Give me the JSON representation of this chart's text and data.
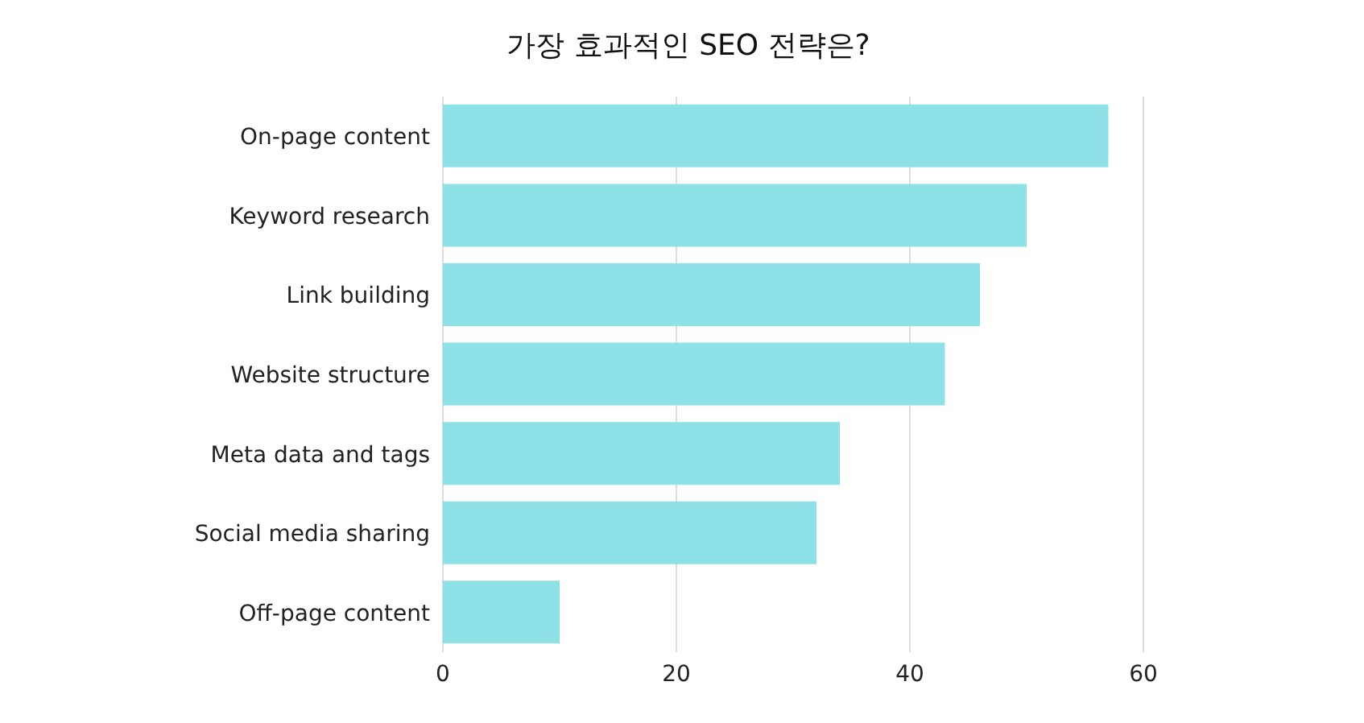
{
  "chart_data": {
    "type": "bar",
    "orientation": "horizontal",
    "title": "가장 효과적인 SEO 전략은?",
    "categories": [
      "On-page content",
      "Keyword research",
      "Link building",
      "Website structure",
      "Meta data and tags",
      "Social media sharing",
      "Off-page content"
    ],
    "values": [
      57,
      50,
      46,
      43,
      34,
      32,
      10
    ],
    "color": "#8ee2e7",
    "xlim": [
      0,
      60
    ],
    "xticks": [
      0,
      20,
      40,
      60
    ],
    "grid": "x"
  }
}
